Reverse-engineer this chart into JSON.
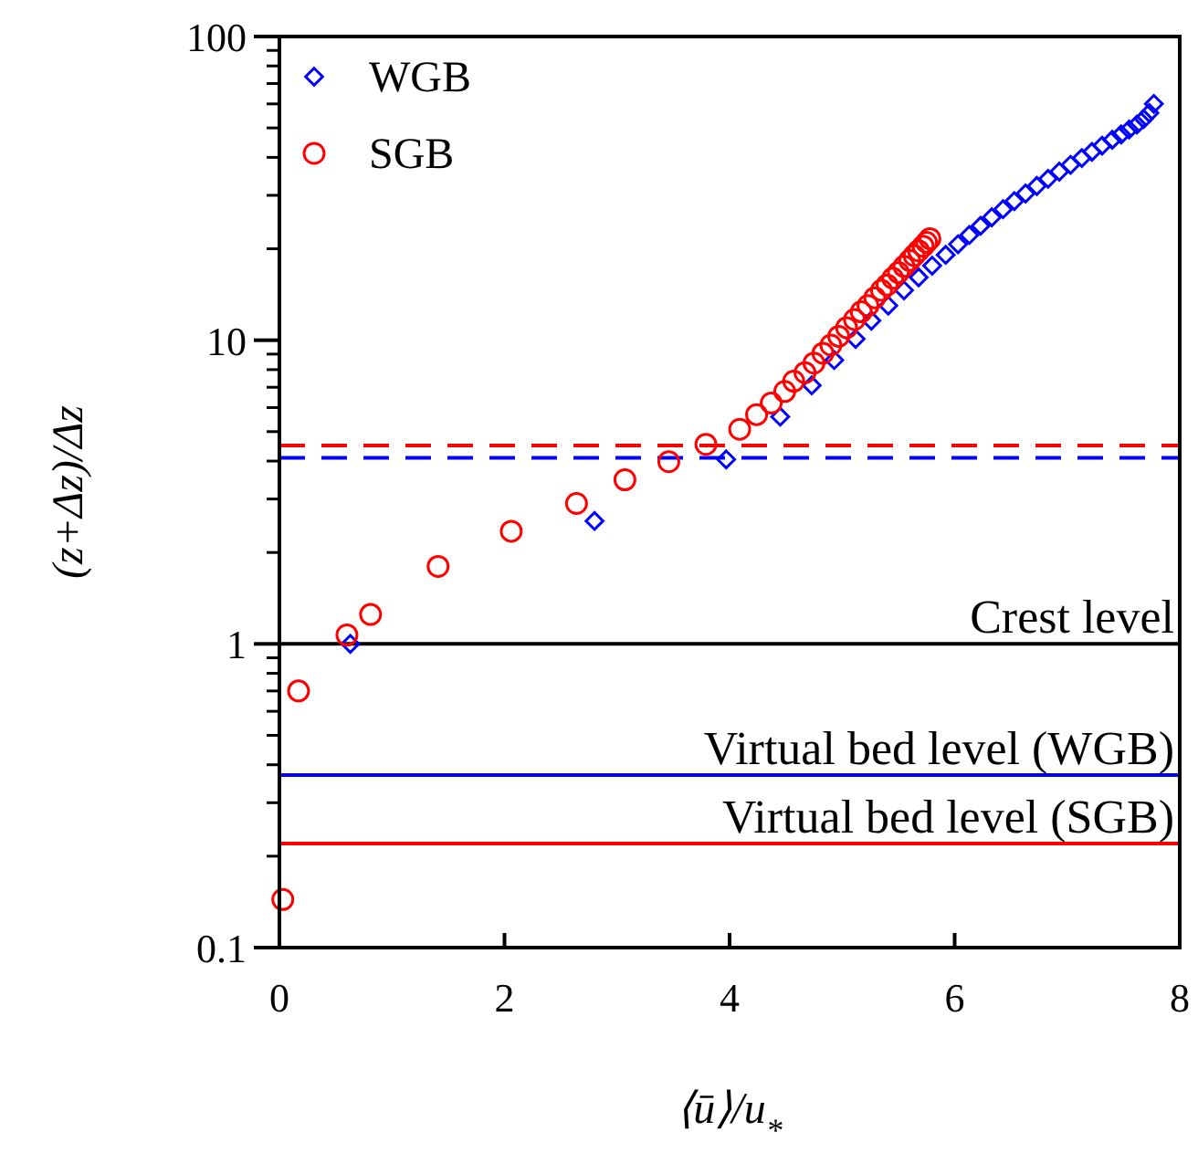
{
  "chart_data": {
    "type": "scatter",
    "xlabel": "⟨ū⟩/u$_{*}$",
    "ylabel": "(z+Δz)/Δz",
    "xlim": [
      0,
      8
    ],
    "xticks": [
      0,
      2,
      4,
      6,
      8
    ],
    "ylim": [
      0.1,
      100
    ],
    "yticks": [
      0.1,
      1,
      10,
      100
    ],
    "log": "y",
    "grid": false,
    "legend": "top left",
    "series": [
      {
        "name": "WGB",
        "color": "#0000ff",
        "marker": "diamond",
        "x": [
          0.63,
          2.8,
          3.97,
          4.45,
          4.73,
          4.93,
          5.12,
          5.26,
          5.41,
          5.55,
          5.68,
          5.8,
          5.92,
          6.03,
          6.13,
          6.23,
          6.33,
          6.43,
          6.53,
          6.63,
          6.73,
          6.83,
          6.93,
          7.03,
          7.13,
          7.22,
          7.31,
          7.4,
          7.48,
          7.55,
          7.62,
          7.68,
          7.73,
          7.77
        ],
        "values": [
          1.0,
          2.54,
          4.05,
          5.6,
          7.1,
          8.6,
          10.1,
          11.6,
          13.0,
          14.6,
          16.1,
          17.6,
          19.1,
          20.7,
          22.2,
          23.8,
          25.4,
          27.0,
          28.7,
          30.4,
          32.2,
          34.0,
          35.9,
          37.8,
          39.8,
          41.7,
          43.7,
          45.7,
          47.6,
          49.4,
          51.3,
          53.5,
          56,
          60
        ]
      },
      {
        "name": "SGB",
        "color": "#ff0000",
        "marker": "circle",
        "x": [
          0.03,
          0.17,
          0.6,
          0.81,
          1.41,
          2.06,
          2.64,
          3.07,
          3.46,
          3.79,
          4.09,
          4.24,
          4.37,
          4.49,
          4.57,
          4.67,
          4.75,
          4.83,
          4.9,
          4.97,
          5.04,
          5.11,
          5.17,
          5.23,
          5.29,
          5.35,
          5.4,
          5.45,
          5.5,
          5.55,
          5.6,
          5.64,
          5.68,
          5.72,
          5.75,
          5.78
        ],
        "values": [
          0.144,
          0.7,
          1.07,
          1.25,
          1.8,
          2.35,
          2.9,
          3.47,
          3.98,
          4.54,
          5.09,
          5.69,
          6.21,
          6.78,
          7.33,
          7.82,
          8.41,
          9.06,
          9.64,
          10.3,
          11.0,
          11.7,
          12.4,
          13.0,
          13.8,
          14.6,
          15.2,
          16.0,
          16.7,
          17.5,
          18.3,
          19.0,
          19.7,
          20.4,
          21.0,
          21.6
        ]
      }
    ],
    "ref_lines": [
      {
        "axis": "y",
        "value": 4.5,
        "color": "#ff0000",
        "line_style": "dashed"
      },
      {
        "axis": "y",
        "value": 4.1,
        "color": "#0000ff",
        "line_style": "dashed"
      },
      {
        "axis": "y",
        "value": 1,
        "label": "Crest level",
        "color": "#000000",
        "line_style": "solid"
      },
      {
        "axis": "y",
        "value": 0.37,
        "label": "Virtual bed level (WGB)",
        "color": "#0000ff",
        "line_style": "solid"
      },
      {
        "axis": "y",
        "value": 0.22,
        "label": "Virtual bed level (SGB)",
        "color": "#ff0000",
        "line_style": "solid"
      }
    ]
  }
}
